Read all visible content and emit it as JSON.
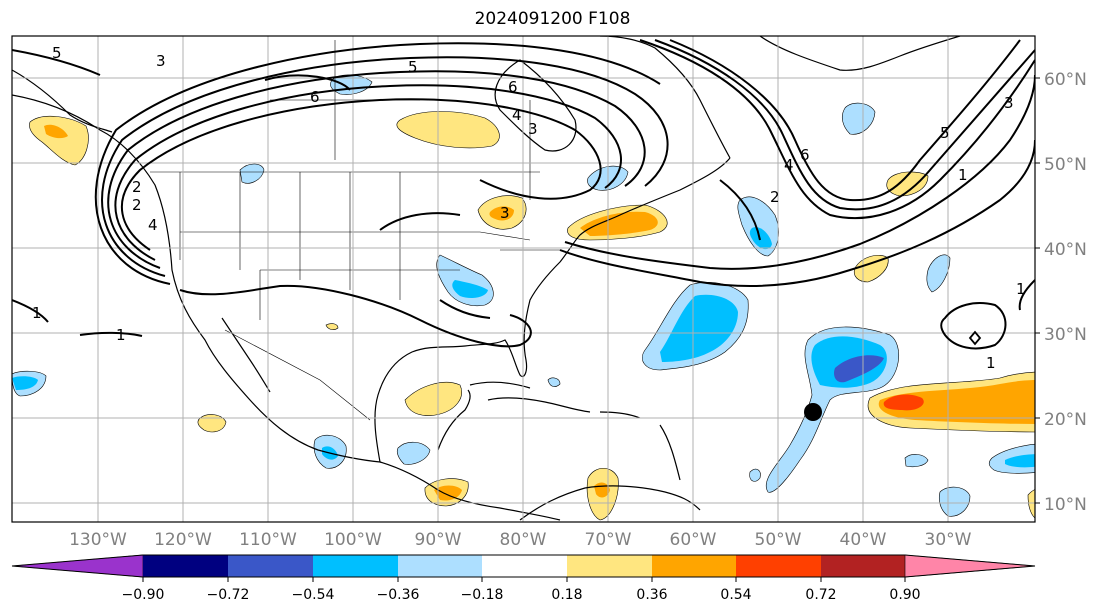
{
  "title": "2024091200 F108",
  "map": {
    "type": "filled-contour-map",
    "lon_labels": [
      "130°W",
      "120°W",
      "110°W",
      "100°W",
      "90°W",
      "80°W",
      "70°W",
      "60°W",
      "50°W",
      "40°W",
      "30°W"
    ],
    "lat_labels": [
      "10°N",
      "20°N",
      "30°N",
      "40°N",
      "50°N",
      "60°N"
    ],
    "contour_labels": [
      "5",
      "3",
      "6",
      "5",
      "6",
      "4",
      "3",
      "2",
      "4",
      "2",
      "3",
      "4",
      "5",
      "6",
      "3",
      "1",
      "2",
      "1",
      "1",
      "1",
      "1"
    ],
    "grid": true
  },
  "colorbar": {
    "labels": [
      "−0.90",
      "−0.72",
      "−0.54",
      "−0.36",
      "−0.18",
      "0.18",
      "0.36",
      "0.54",
      "0.72",
      "0.90"
    ],
    "colors": [
      "#9a33cc",
      "#000080",
      "#3a57c8",
      "#00bfff",
      "#addfff",
      "#ffffff",
      "#ffe680",
      "#ffa500",
      "#ff4000",
      "#b22222",
      "#ff85a8"
    ],
    "extend": "both"
  },
  "colors": {
    "orange": "#ffa500",
    "yellow": "#ffe680",
    "red": "#ff4000",
    "light_blue": "#addfff",
    "sky_blue": "#00bfff",
    "blue": "#3a57c8"
  },
  "marker": "filled-circle"
}
